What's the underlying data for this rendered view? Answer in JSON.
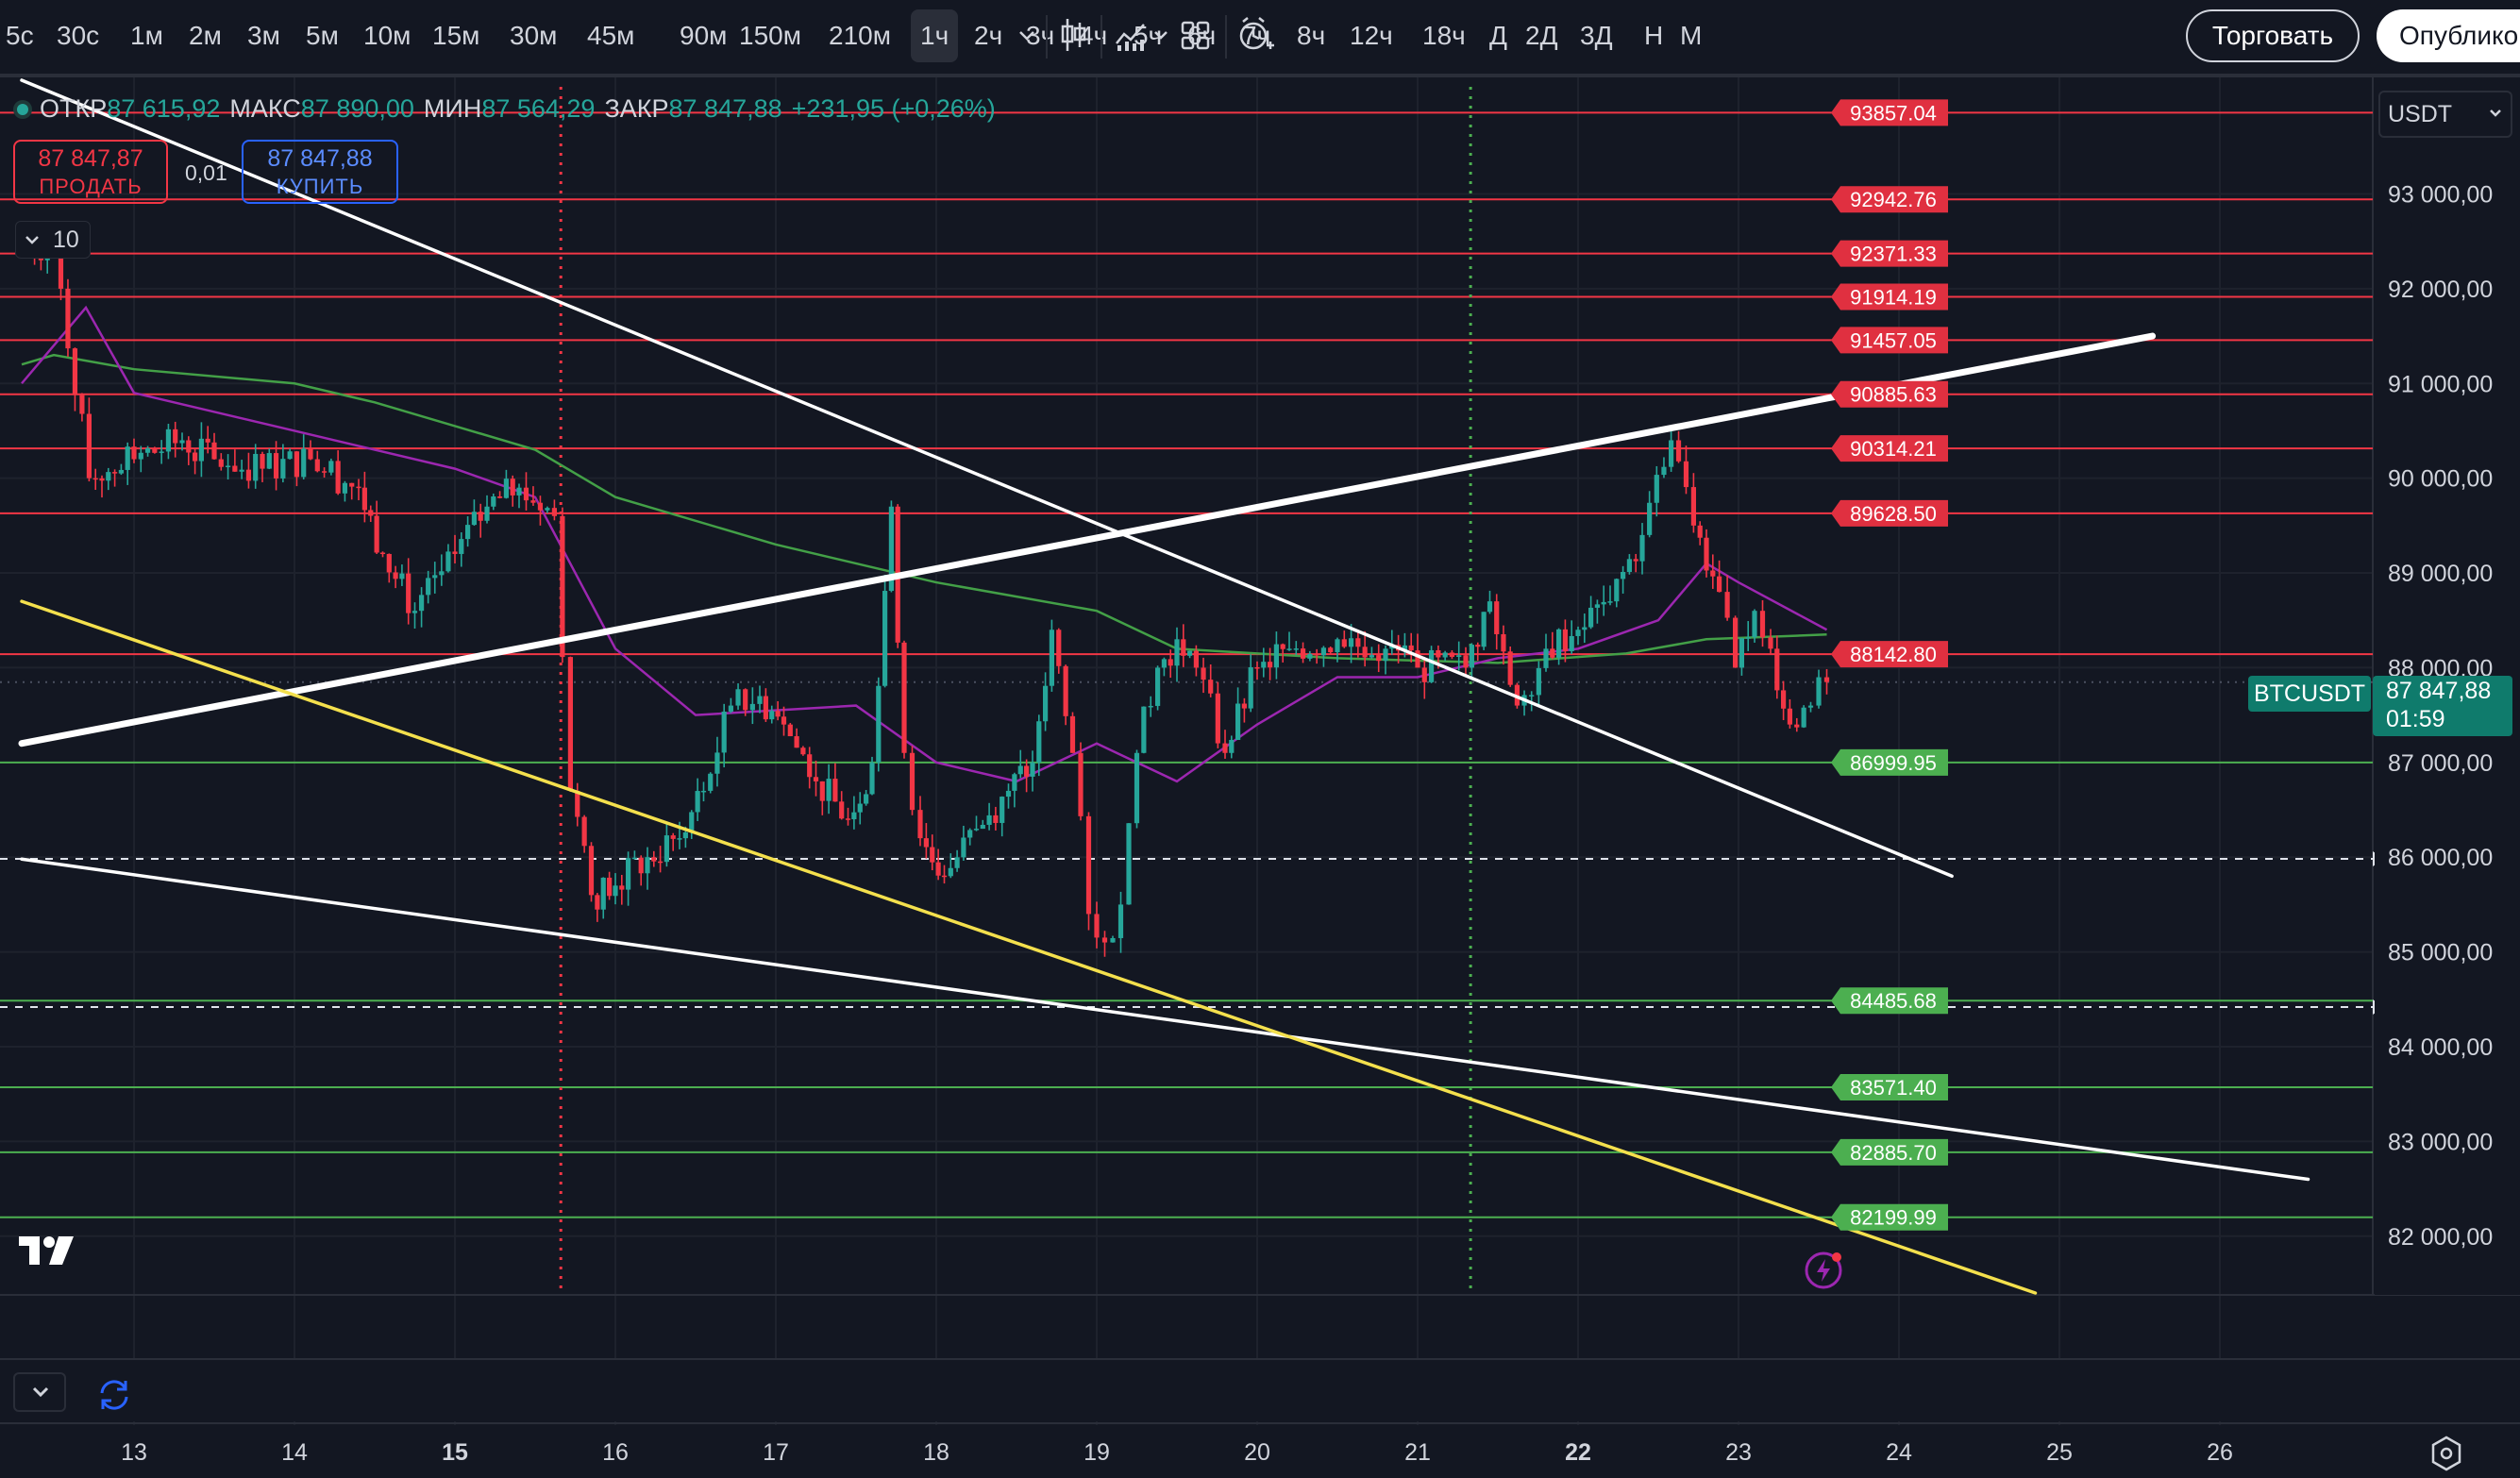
{
  "toolbar": {
    "timeframes": [
      "5с",
      "30с",
      "1м",
      "2м",
      "3м",
      "5м",
      "10м",
      "15м",
      "30м",
      "45м",
      "90м",
      "150м",
      "210м",
      "1ч",
      "2ч",
      "3ч",
      "4ч",
      "5ч",
      "6ч",
      "7ч",
      "8ч",
      "12ч",
      "18ч",
      "Д",
      "2Д",
      "3Д",
      "Н",
      "М"
    ],
    "active_timeframe": "1ч",
    "trade_label": "Торговать",
    "publish_label": "Опубликовать",
    "icons": [
      "chevron-down-icon",
      "candles-icon",
      "indicators-icon",
      "chevron-down-icon",
      "layout-icon",
      "alert-icon"
    ]
  },
  "legend": {
    "open_label": "ОТКР",
    "open": "87 615,92",
    "high_label": "МАКС",
    "high": "87 890,00",
    "low_label": "МИН",
    "low": "87 564,29",
    "close_label": "ЗАКР",
    "close": "87 847,88",
    "change": "+231,95 (+0,26%)"
  },
  "order": {
    "sell_price": "87 847,87",
    "sell_label": "ПРОДАТЬ",
    "spread": "0,01",
    "buy_price": "87 847,88",
    "buy_label": "КУПИТЬ"
  },
  "indicator_toggle": "10",
  "currency": "USDT",
  "symbol": "BTCUSDT",
  "last_price": "87 847,88",
  "countdown": "01:59",
  "colors": {
    "bg": "#131722",
    "up": "#26a69a",
    "down": "#f23645",
    "white_line": "#ffffff",
    "yellow_line": "#f4e04d",
    "ma_fast": "#9c27b0",
    "ma_slow": "#43a047"
  },
  "chart_data": {
    "type": "candlestick",
    "symbol": "BTCUSDT",
    "interval": "1ч",
    "x_ticks": [
      "13",
      "14",
      "15",
      "16",
      "17",
      "18",
      "19",
      "20",
      "21",
      "22",
      "23",
      "24",
      "25",
      "26"
    ],
    "y_ticks": [
      "82 000,00",
      "83 000,00",
      "84 000,00",
      "85 000,00",
      "86 000,00",
      "87 000,00",
      "88 000,00",
      "89 000,00",
      "90 000,00",
      "91 000,00",
      "92 000,00",
      "93 000,00"
    ],
    "y_range": [
      81400,
      94200
    ],
    "resistance_levels": [
      "93857.04",
      "92942.76",
      "92371.33",
      "91914.19",
      "91457.05",
      "90885.63",
      "90314.21",
      "89628.50",
      "88142.80"
    ],
    "support_levels": [
      "86999.95",
      "84485.68",
      "83571.40",
      "82885.70",
      "82199.99"
    ],
    "dashed_levels": [
      85982,
      84418
    ],
    "vertical_markers": [
      {
        "day": 15.66,
        "color": "red"
      },
      {
        "day": 21.33,
        "color": "green"
      }
    ],
    "trend_lines": [
      {
        "color": "white",
        "width": "thin",
        "points": [
          [
            12.3,
            94200
          ],
          [
            24.33,
            85800
          ]
        ]
      },
      {
        "color": "white",
        "width": "thick",
        "points": [
          [
            12.3,
            87200
          ],
          [
            25.58,
            91500
          ]
        ]
      },
      {
        "color": "white",
        "width": "thin",
        "points": [
          [
            12.3,
            85980
          ],
          [
            26.55,
            82600
          ]
        ]
      },
      {
        "color": "yellow",
        "width": "thin",
        "points": [
          [
            12.3,
            88700
          ],
          [
            24.85,
            81400
          ]
        ]
      }
    ],
    "candles_close": [
      [
        12.3,
        92400
      ],
      [
        12.5,
        92500
      ],
      [
        12.72,
        90000
      ],
      [
        13.0,
        90200
      ],
      [
        13.3,
        90400
      ],
      [
        13.5,
        90200
      ],
      [
        13.8,
        90100
      ],
      [
        14.1,
        90200
      ],
      [
        14.4,
        89900
      ],
      [
        14.55,
        89200
      ],
      [
        14.75,
        88600
      ],
      [
        15.0,
        89200
      ],
      [
        15.2,
        89700
      ],
      [
        15.4,
        89900
      ],
      [
        15.62,
        89600
      ],
      [
        15.72,
        86700
      ],
      [
        15.85,
        85600
      ],
      [
        16.0,
        85700
      ],
      [
        16.2,
        86000
      ],
      [
        16.4,
        86200
      ],
      [
        16.55,
        86700
      ],
      [
        16.72,
        87600
      ],
      [
        16.9,
        87700
      ],
      [
        17.05,
        87400
      ],
      [
        17.25,
        86800
      ],
      [
        17.45,
        86400
      ],
      [
        17.6,
        87000
      ],
      [
        17.72,
        89700
      ],
      [
        17.8,
        87100
      ],
      [
        17.9,
        86200
      ],
      [
        18.05,
        85800
      ],
      [
        18.25,
        86300
      ],
      [
        18.45,
        86700
      ],
      [
        18.6,
        87000
      ],
      [
        18.72,
        88400
      ],
      [
        18.85,
        87100
      ],
      [
        18.95,
        85400
      ],
      [
        19.05,
        85100
      ],
      [
        19.15,
        85500
      ],
      [
        19.25,
        87100
      ],
      [
        19.38,
        88000
      ],
      [
        19.5,
        88300
      ],
      [
        19.62,
        88000
      ],
      [
        19.8,
        87100
      ],
      [
        20.0,
        88000
      ],
      [
        20.2,
        88200
      ],
      [
        20.5,
        88300
      ],
      [
        20.8,
        88200
      ],
      [
        21.0,
        88000
      ],
      [
        21.3,
        88000
      ],
      [
        21.45,
        88700
      ],
      [
        21.62,
        87600
      ],
      [
        21.8,
        88200
      ],
      [
        22.0,
        88400
      ],
      [
        22.2,
        88700
      ],
      [
        22.4,
        89400
      ],
      [
        22.58,
        90400
      ],
      [
        22.72,
        89500
      ],
      [
        22.88,
        88800
      ],
      [
        22.98,
        88000
      ],
      [
        23.1,
        88600
      ],
      [
        23.2,
        88200
      ],
      [
        23.32,
        87400
      ],
      [
        23.45,
        87600
      ],
      [
        23.55,
        87848
      ]
    ],
    "ma_fast": [
      [
        12.3,
        91000
      ],
      [
        12.7,
        91800
      ],
      [
        13.0,
        90900
      ],
      [
        14.0,
        90500
      ],
      [
        15.0,
        90100
      ],
      [
        15.5,
        89800
      ],
      [
        16.0,
        88200
      ],
      [
        16.5,
        87500
      ],
      [
        17.5,
        87600
      ],
      [
        18.0,
        87000
      ],
      [
        18.5,
        86800
      ],
      [
        19.0,
        87200
      ],
      [
        19.5,
        86800
      ],
      [
        20.0,
        87400
      ],
      [
        20.5,
        87900
      ],
      [
        21.0,
        87900
      ],
      [
        21.5,
        88100
      ],
      [
        22.0,
        88200
      ],
      [
        22.5,
        88500
      ],
      [
        22.8,
        89100
      ],
      [
        23.0,
        88900
      ],
      [
        23.55,
        88400
      ]
    ],
    "ma_slow": [
      [
        12.3,
        91200
      ],
      [
        12.5,
        91300
      ],
      [
        13.0,
        91150
      ],
      [
        14.0,
        91000
      ],
      [
        14.5,
        90800
      ],
      [
        15.0,
        90550
      ],
      [
        15.5,
        90300
      ],
      [
        16.0,
        89800
      ],
      [
        17.0,
        89300
      ],
      [
        18.0,
        88900
      ],
      [
        19.0,
        88600
      ],
      [
        19.5,
        88200
      ],
      [
        20.5,
        88100
      ],
      [
        21.5,
        88050
      ],
      [
        22.3,
        88150
      ],
      [
        22.8,
        88300
      ],
      [
        23.55,
        88350
      ]
    ]
  }
}
